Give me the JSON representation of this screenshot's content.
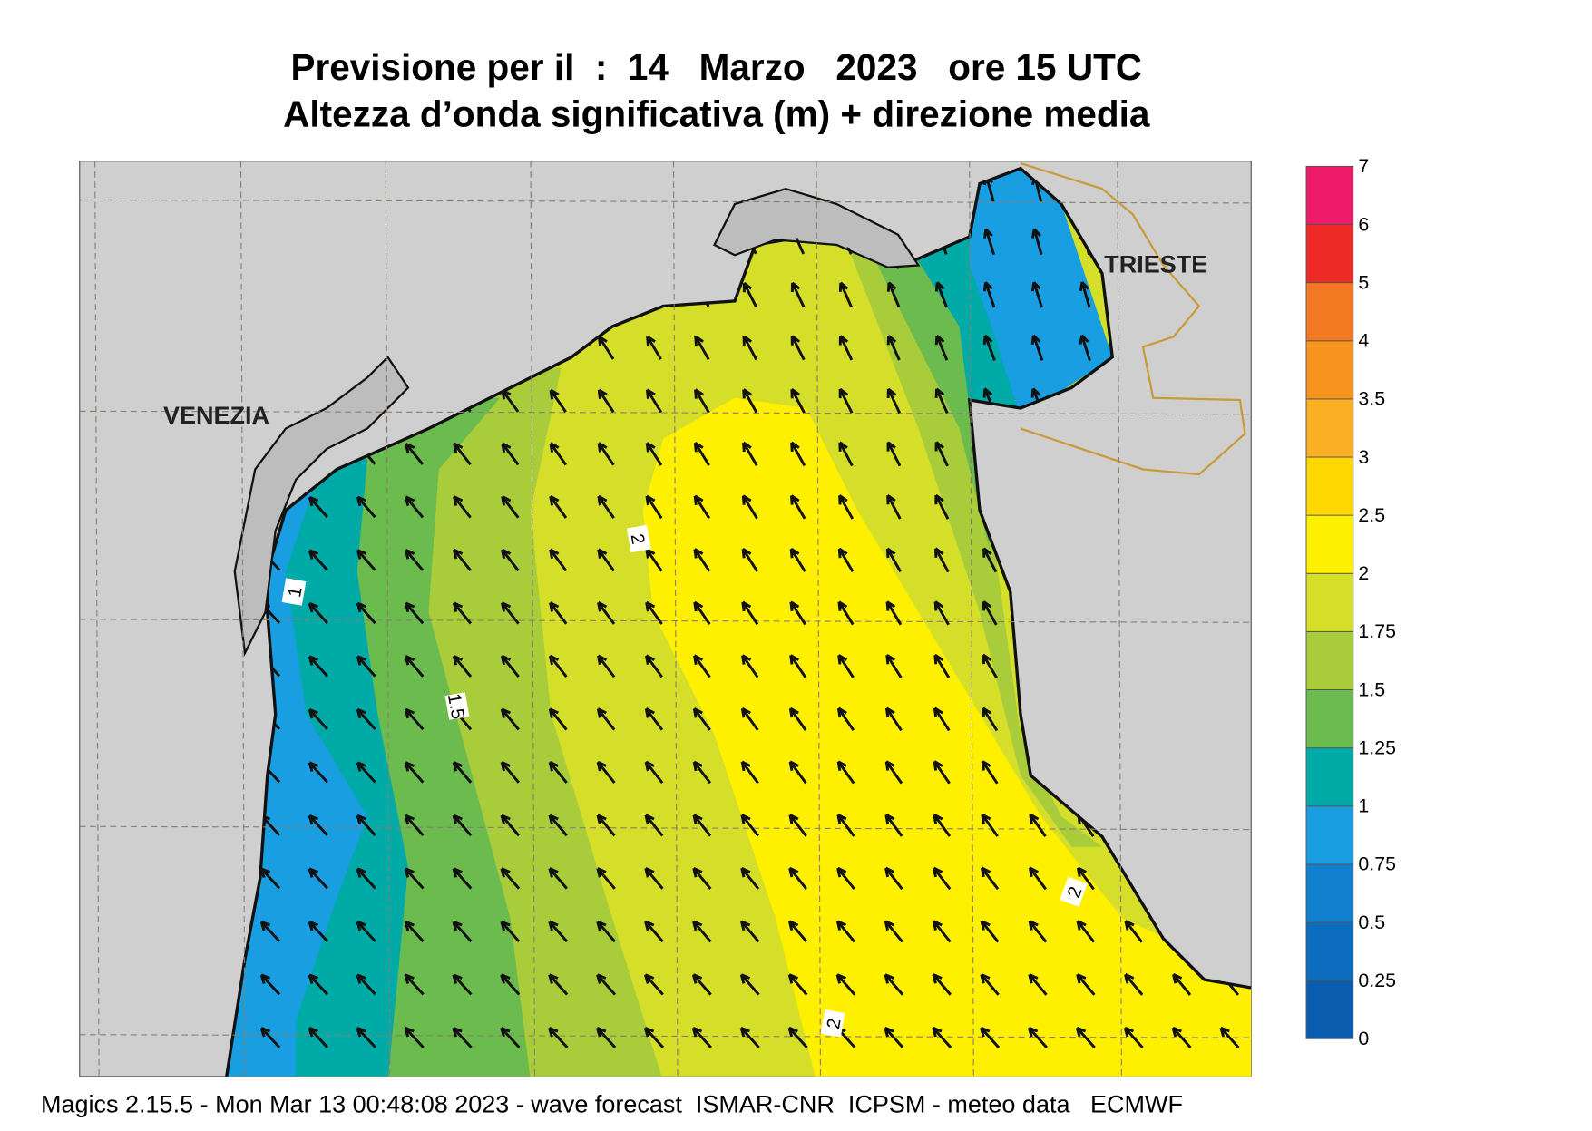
{
  "header": {
    "title": "Previsione per il  :  14   Marzo   2023   ore 15 UTC",
    "subtitle": "Altezza d’onda significativa (m) + direzione media"
  },
  "map": {
    "places": [
      "VENEZIA",
      "TRIESTE"
    ],
    "contour_labels": [
      "1",
      "1.5",
      "2",
      "2",
      "2"
    ]
  },
  "colorbar": {
    "ticks": [
      0,
      0.25,
      0.5,
      0.75,
      1,
      1.25,
      1.5,
      1.75,
      2,
      2.5,
      3,
      3.5,
      4,
      5,
      6,
      7
    ],
    "colors": [
      "#0a5cae",
      "#0c6cbe",
      "#1080cf",
      "#199ee2",
      "#00aaa6",
      "#6cbb4e",
      "#a8cc3a",
      "#d5df2a",
      "#fff000",
      "#ffd700",
      "#fbb023",
      "#f7941e",
      "#f47821",
      "#ed2a25",
      "#ec1a68"
    ]
  },
  "footer": "Magics 2.15.5 - Mon Mar 13 00:48:08 2023 - wave forecast  ISMAR-CNR  ICPSM - meteo data   ECMWF"
}
